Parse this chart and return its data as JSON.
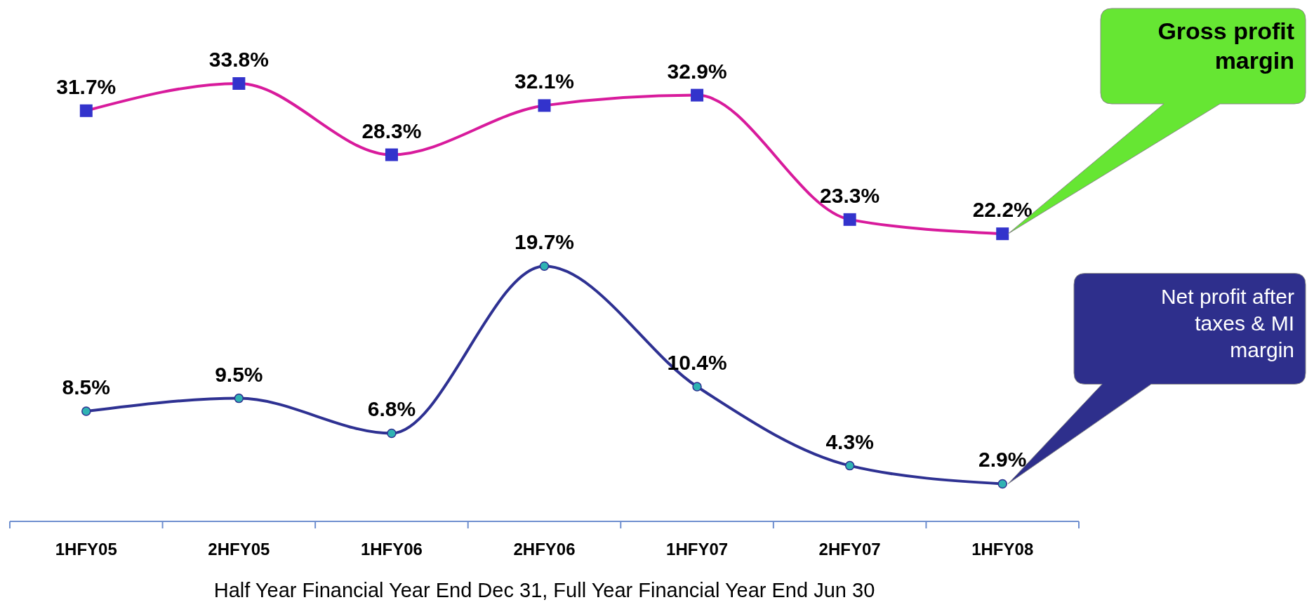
{
  "chart_data": {
    "type": "line",
    "xlabel": "Half Year Financial Year End Dec 31, Full Year Financial Year End Jun 30",
    "categories": [
      "1HFY05",
      "2HFY05",
      "1HFY06",
      "2HFY06",
      "1HFY07",
      "2HFY07",
      "1HFY08"
    ],
    "series": [
      {
        "name": "Gross profit margin",
        "color": "#d81b9c",
        "marker": "square",
        "values": [
          31.7,
          33.8,
          28.3,
          32.1,
          32.9,
          23.3,
          22.2
        ],
        "value_labels": [
          "31.7%",
          "33.8%",
          "28.3%",
          "32.1%",
          "32.9%",
          "23.3%",
          "22.2%"
        ]
      },
      {
        "name": "Net profit after taxes & MI margin",
        "color": "#2e3192",
        "marker": "circle",
        "values": [
          8.5,
          9.5,
          6.8,
          19.7,
          10.4,
          4.3,
          2.9
        ],
        "value_labels": [
          "8.5%",
          "9.5%",
          "6.8%",
          "19.7%",
          "10.4%",
          "4.3%",
          "2.9%"
        ]
      }
    ],
    "tick_labels": "x",
    "legend": "right"
  }
}
